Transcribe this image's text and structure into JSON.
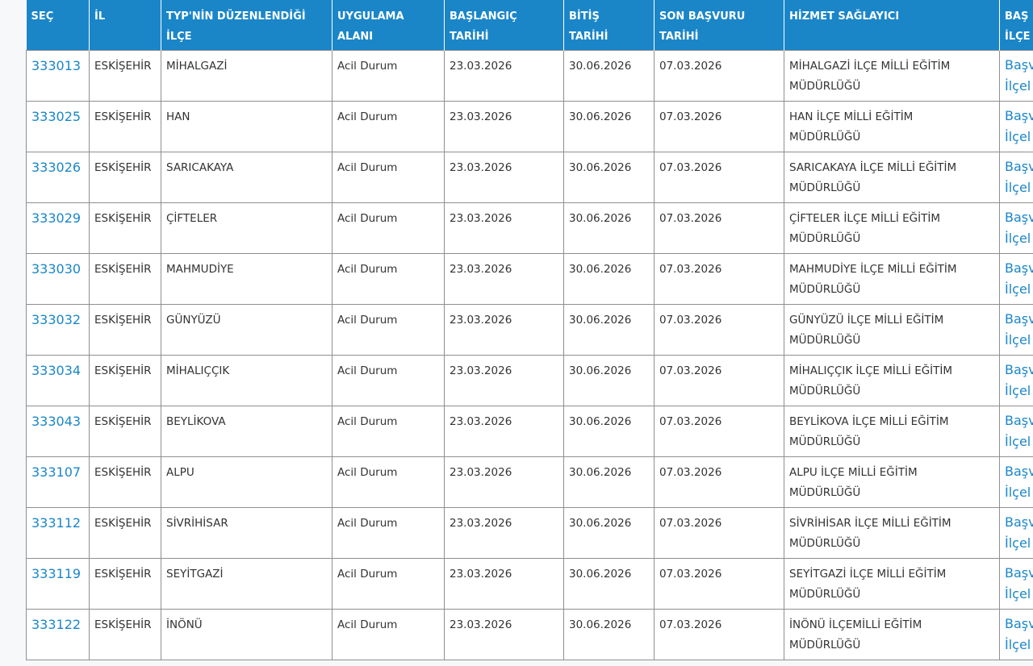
{
  "table": {
    "header": [
      [
        "SEÇ"
      ],
      [
        "İL"
      ],
      [
        "TYP'NİN DÜZENLENDİĞİ",
        "İLÇE"
      ],
      [
        "UYGULAMA",
        "ALANI"
      ],
      [
        "BAŞLANGIÇ",
        "TARİHİ"
      ],
      [
        "BİTİŞ",
        "TARİHİ"
      ],
      [
        "SON BAŞVURU",
        "TARİHİ"
      ],
      [
        "HİZMET SAĞLAYICI"
      ],
      [
        "BAŞ",
        "İLÇE"
      ]
    ],
    "rows": [
      [
        "333013",
        "ESKİŞEHİR",
        "MİHALGAZİ",
        "Acil Durum",
        "23.03.2026",
        "30.06.2026",
        "07.03.2026",
        [
          "MİHALGAZİ İLÇE MİLLİ EĞİTİM",
          "MÜDÜRLÜĞÜ"
        ],
        [
          "Başv",
          "İlçel"
        ]
      ],
      [
        "333025",
        "ESKİŞEHİR",
        "HAN",
        "Acil Durum",
        "23.03.2026",
        "30.06.2026",
        "07.03.2026",
        [
          "HAN İLÇE MİLLİ EĞİTİM",
          "MÜDÜRLÜĞÜ"
        ],
        [
          "Başv",
          "İlçel"
        ]
      ],
      [
        "333026",
        "ESKİŞEHİR",
        "SARICAKAYA",
        "Acil Durum",
        "23.03.2026",
        "30.06.2026",
        "07.03.2026",
        [
          "SARICAKAYA İLÇE MİLLİ EĞİTİM",
          "MÜDÜRLÜĞÜ"
        ],
        [
          "Başv",
          "İlçel"
        ]
      ],
      [
        "333029",
        "ESKİŞEHİR",
        "ÇİFTELER",
        "Acil Durum",
        "23.03.2026",
        "30.06.2026",
        "07.03.2026",
        [
          "ÇİFTELER İLÇE MİLLİ EĞİTİM",
          "MÜDÜRLÜĞÜ"
        ],
        [
          "Başv",
          "İlçel"
        ]
      ],
      [
        "333030",
        "ESKİŞEHİR",
        "MAHMUDİYE",
        "Acil Durum",
        "23.03.2026",
        "30.06.2026",
        "07.03.2026",
        [
          "MAHMUDİYE İLÇE MİLLİ EĞİTİM",
          "MÜDÜRLÜĞÜ"
        ],
        [
          "Başv",
          "İlçel"
        ]
      ],
      [
        "333032",
        "ESKİŞEHİR",
        "GÜNYÜZÜ",
        "Acil Durum",
        "23.03.2026",
        "30.06.2026",
        "07.03.2026",
        [
          "GÜNYÜZÜ İLÇE MİLLİ EĞİTİM",
          "MÜDÜRLÜĞÜ"
        ],
        [
          "Başv",
          "İlçel"
        ]
      ],
      [
        "333034",
        "ESKİŞEHİR",
        "MİHALIÇÇIK",
        "Acil Durum",
        "23.03.2026",
        "30.06.2026",
        "07.03.2026",
        [
          "MİHALIÇÇIK İLÇE MİLLİ EĞİTİM",
          "MÜDÜRLÜĞÜ"
        ],
        [
          "Başv",
          "İlçel"
        ]
      ],
      [
        "333043",
        "ESKİŞEHİR",
        "BEYLİKOVA",
        "Acil Durum",
        "23.03.2026",
        "30.06.2026",
        "07.03.2026",
        [
          "BEYLİKOVA İLÇE MİLLİ EĞİTİM",
          "MÜDÜRLÜĞÜ"
        ],
        [
          "Başv",
          "İlçel"
        ]
      ],
      [
        "333107",
        "ESKİŞEHİR",
        "ALPU",
        "Acil Durum",
        "23.03.2026",
        "30.06.2026",
        "07.03.2026",
        [
          "ALPU İLÇE MİLLİ EĞİTİM",
          "MÜDÜRLÜĞÜ"
        ],
        [
          "Başv",
          "İlçel"
        ]
      ],
      [
        "333112",
        "ESKİŞEHİR",
        "SİVRİHİSAR",
        "Acil Durum",
        "23.03.2026",
        "30.06.2026",
        "07.03.2026",
        [
          "SİVRİHİSAR İLÇE MİLLİ EĞİTİM",
          "MÜDÜRLÜĞÜ"
        ],
        [
          "Başv",
          "İlçel"
        ]
      ],
      [
        "333119",
        "ESKİŞEHİR",
        "SEYİTGAZİ",
        "Acil Durum",
        "23.03.2026",
        "30.06.2026",
        "07.03.2026",
        [
          "SEYİTGAZİ İLÇE MİLLİ EĞİTİM",
          "MÜDÜRLÜĞÜ"
        ],
        [
          "Başv",
          "İlçel"
        ]
      ],
      [
        "333122",
        "ESKİŞEHİR",
        "İNÖNÜ",
        "Acil Durum",
        "23.03.2026",
        "30.06.2026",
        "07.03.2026",
        [
          "İNÖNÜ İLÇEMİLLİ EĞİTİM",
          "MÜDÜRLÜĞÜ"
        ],
        [
          "Başv",
          "İlçel"
        ]
      ]
    ]
  }
}
